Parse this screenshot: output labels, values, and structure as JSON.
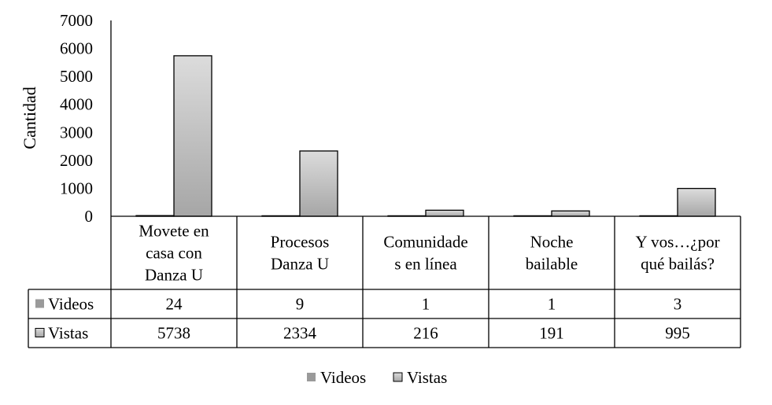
{
  "chart_data": {
    "type": "bar",
    "ylabel": "Cantidad",
    "ylim": [
      0,
      7000
    ],
    "yticks": [
      0,
      1000,
      2000,
      3000,
      4000,
      5000,
      6000,
      7000
    ],
    "categories": [
      [
        "Movete en",
        "casa con",
        "Danza U"
      ],
      [
        "Procesos",
        "Danza U"
      ],
      [
        "Comunidade",
        "s en línea"
      ],
      [
        "Noche",
        "bailable"
      ],
      [
        "Y vos…¿por",
        "qué bailás?"
      ]
    ],
    "series": [
      {
        "name": "Videos",
        "values": [
          24,
          9,
          1,
          1,
          3
        ],
        "color_top": "#9a9a9a",
        "color_bottom": "#9a9a9a"
      },
      {
        "name": "Vistas",
        "values": [
          5738,
          2334,
          216,
          191,
          995
        ],
        "color_top": "#dcdcdc",
        "color_bottom": "#a6a6a6"
      }
    ],
    "data_table": true,
    "legend_position": "bottom",
    "grid": false
  }
}
